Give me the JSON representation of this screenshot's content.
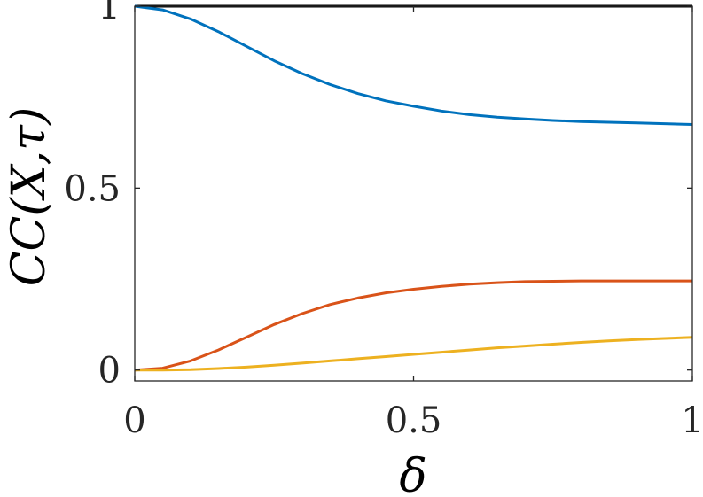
{
  "chart_data": {
    "type": "line",
    "title": "",
    "xlabel": "δ",
    "ylabel": "CC(X,τ)",
    "xlim": [
      0,
      1
    ],
    "ylim": [
      -0.03,
      1.0
    ],
    "xticks": [
      0,
      0.5,
      1
    ],
    "xtick_labels": [
      "0",
      "0.5",
      "1"
    ],
    "yticks": [
      0,
      0.5,
      1
    ],
    "ytick_labels": [
      "0",
      "0.5",
      "1"
    ],
    "grid": false,
    "legend": "none",
    "x": [
      0,
      0.05,
      0.1,
      0.15,
      0.2,
      0.25,
      0.3,
      0.35,
      0.4,
      0.45,
      0.5,
      0.55,
      0.6,
      0.65,
      0.7,
      0.75,
      0.8,
      0.85,
      0.9,
      0.95,
      1.0
    ],
    "series": [
      {
        "color": "#000000",
        "values": [
          1.0,
          1.0,
          1.0,
          1.0,
          1.0,
          1.0,
          1.0,
          1.0,
          1.0,
          1.0,
          1.0,
          1.0,
          1.0,
          1.0,
          1.0,
          1.0,
          1.0,
          1.0,
          1.0,
          1.0,
          1.0
        ]
      },
      {
        "color": "#0072BD",
        "values": [
          1.0,
          0.99,
          0.965,
          0.93,
          0.89,
          0.85,
          0.815,
          0.785,
          0.76,
          0.74,
          0.725,
          0.712,
          0.702,
          0.695,
          0.69,
          0.686,
          0.683,
          0.681,
          0.679,
          0.677,
          0.675
        ]
      },
      {
        "color": "#D95319",
        "values": [
          0.0,
          0.005,
          0.025,
          0.055,
          0.09,
          0.125,
          0.155,
          0.18,
          0.198,
          0.212,
          0.222,
          0.23,
          0.236,
          0.24,
          0.243,
          0.244,
          0.245,
          0.245,
          0.245,
          0.245,
          0.245
        ]
      },
      {
        "color": "#EDB120",
        "values": [
          0.0,
          0.0,
          0.001,
          0.004,
          0.008,
          0.013,
          0.019,
          0.025,
          0.031,
          0.037,
          0.043,
          0.049,
          0.055,
          0.061,
          0.066,
          0.071,
          0.076,
          0.08,
          0.084,
          0.087,
          0.09
        ]
      }
    ]
  }
}
